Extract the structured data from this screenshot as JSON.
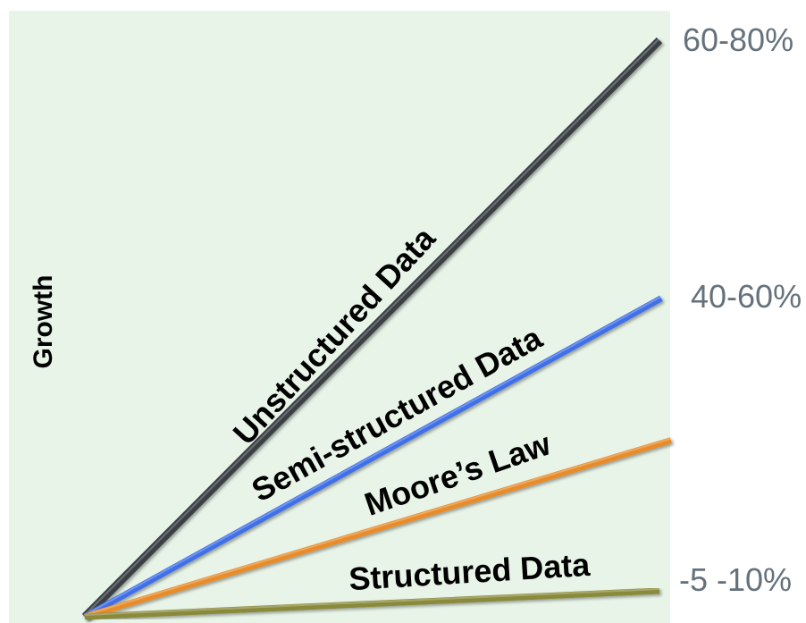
{
  "chart_data": {
    "type": "line",
    "ylabel": "Growth",
    "xlabel": "",
    "grid": false,
    "legend": "none",
    "background_color": "#e8f4e8",
    "series": [
      {
        "name": "Unstructured Data",
        "color": "#3a3f45",
        "x": [
          0,
          1
        ],
        "y": [
          0,
          1.0
        ]
      },
      {
        "name": "Semi-structured Data",
        "color": "#3f6fe8",
        "x": [
          0,
          1
        ],
        "y": [
          0,
          0.57
        ]
      },
      {
        "name": "Moore’s Law",
        "color": "#e88b2c",
        "x": [
          0,
          1
        ],
        "y": [
          0,
          0.3
        ]
      },
      {
        "name": "Structured Data",
        "color": "#8a8a3a",
        "x": [
          0,
          1
        ],
        "y": [
          0,
          0.05
        ]
      }
    ],
    "end_labels": [
      "60-80%",
      "40-60%",
      "-5 -10%"
    ]
  }
}
